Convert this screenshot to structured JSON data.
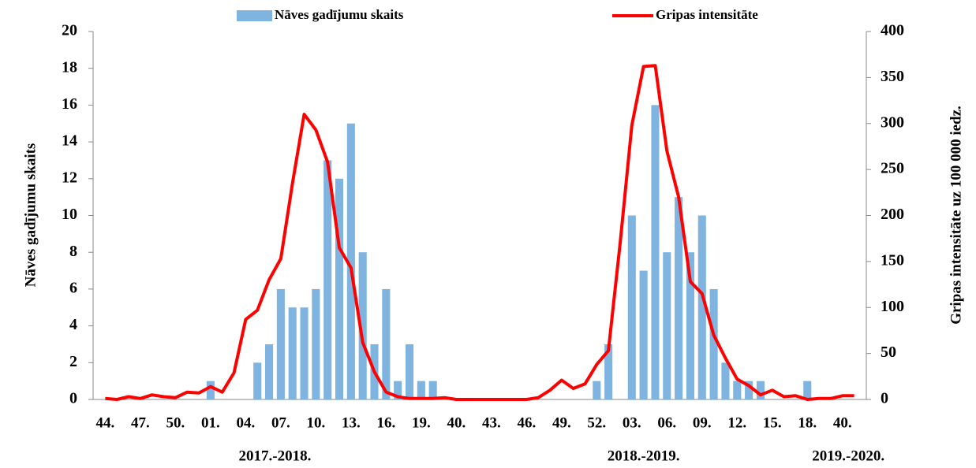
{
  "chart_data": {
    "type": "combo",
    "categories": [
      "44.",
      null,
      null,
      "47.",
      null,
      null,
      "50.",
      null,
      null,
      "01.",
      null,
      null,
      "04.",
      null,
      null,
      "07.",
      null,
      null,
      "10.",
      null,
      null,
      "13.",
      null,
      null,
      "16.",
      null,
      null,
      "19.",
      null,
      null,
      "40.",
      null,
      null,
      "43.",
      null,
      null,
      "46.",
      null,
      null,
      "49.",
      null,
      null,
      "52.",
      null,
      null,
      "03.",
      null,
      null,
      "06.",
      null,
      null,
      "09.",
      null,
      null,
      "12.",
      null,
      null,
      "15.",
      null,
      null,
      "18.",
      null,
      null,
      "40.",
      null
    ],
    "groups": [
      {
        "label": "2017.-2018.",
        "count": 30
      },
      {
        "label": "2018.-2019.",
        "count": 33
      },
      {
        "label": "2019.-2020.",
        "count": 2
      }
    ],
    "series": [
      {
        "name": "Nāves gadījumu skaits",
        "type": "bar",
        "color": "#7fb3e0",
        "axis": "y",
        "values": [
          0,
          0,
          0,
          0,
          0,
          0,
          0,
          0,
          0,
          1,
          0,
          0,
          0,
          2,
          3,
          6,
          5,
          5,
          6,
          13,
          12,
          15,
          8,
          3,
          6,
          1,
          3,
          1,
          1,
          0,
          0,
          0,
          0,
          0,
          0,
          0,
          0,
          0,
          0,
          0,
          0,
          0,
          1,
          3,
          0,
          10,
          7,
          16,
          8,
          11,
          8,
          10,
          6,
          2,
          1,
          1,
          1,
          0,
          0,
          0,
          1,
          0,
          0,
          0,
          0
        ]
      },
      {
        "name": "Gripas intensitāte",
        "type": "line",
        "color": "#ff0000",
        "axis": "y2",
        "values": [
          1,
          0,
          3,
          1,
          5,
          3,
          2,
          8,
          7,
          14,
          8,
          29,
          87,
          97,
          130,
          153,
          235,
          310,
          293,
          258,
          165,
          143,
          62,
          30,
          8,
          3,
          1,
          1,
          1,
          2,
          0,
          0,
          0,
          0,
          0,
          0,
          0,
          2,
          10,
          21,
          12,
          17,
          38,
          53,
          170,
          298,
          362,
          363,
          270,
          220,
          128,
          115,
          70,
          45,
          22,
          15,
          5,
          10,
          3,
          4,
          0,
          1,
          1,
          4,
          4
        ]
      }
    ],
    "ylabel": "Nāves gadījumu skaits",
    "y2label": "Gripas intensitāte uz 100 000 iedz.",
    "ylim": [
      0,
      20
    ],
    "yticks": [
      0,
      2,
      4,
      6,
      8,
      10,
      12,
      14,
      16,
      18,
      20
    ],
    "y2lim": [
      0,
      400
    ],
    "y2ticks": [
      0,
      50,
      100,
      150,
      200,
      250,
      300,
      350,
      400
    ],
    "legend": "top"
  }
}
